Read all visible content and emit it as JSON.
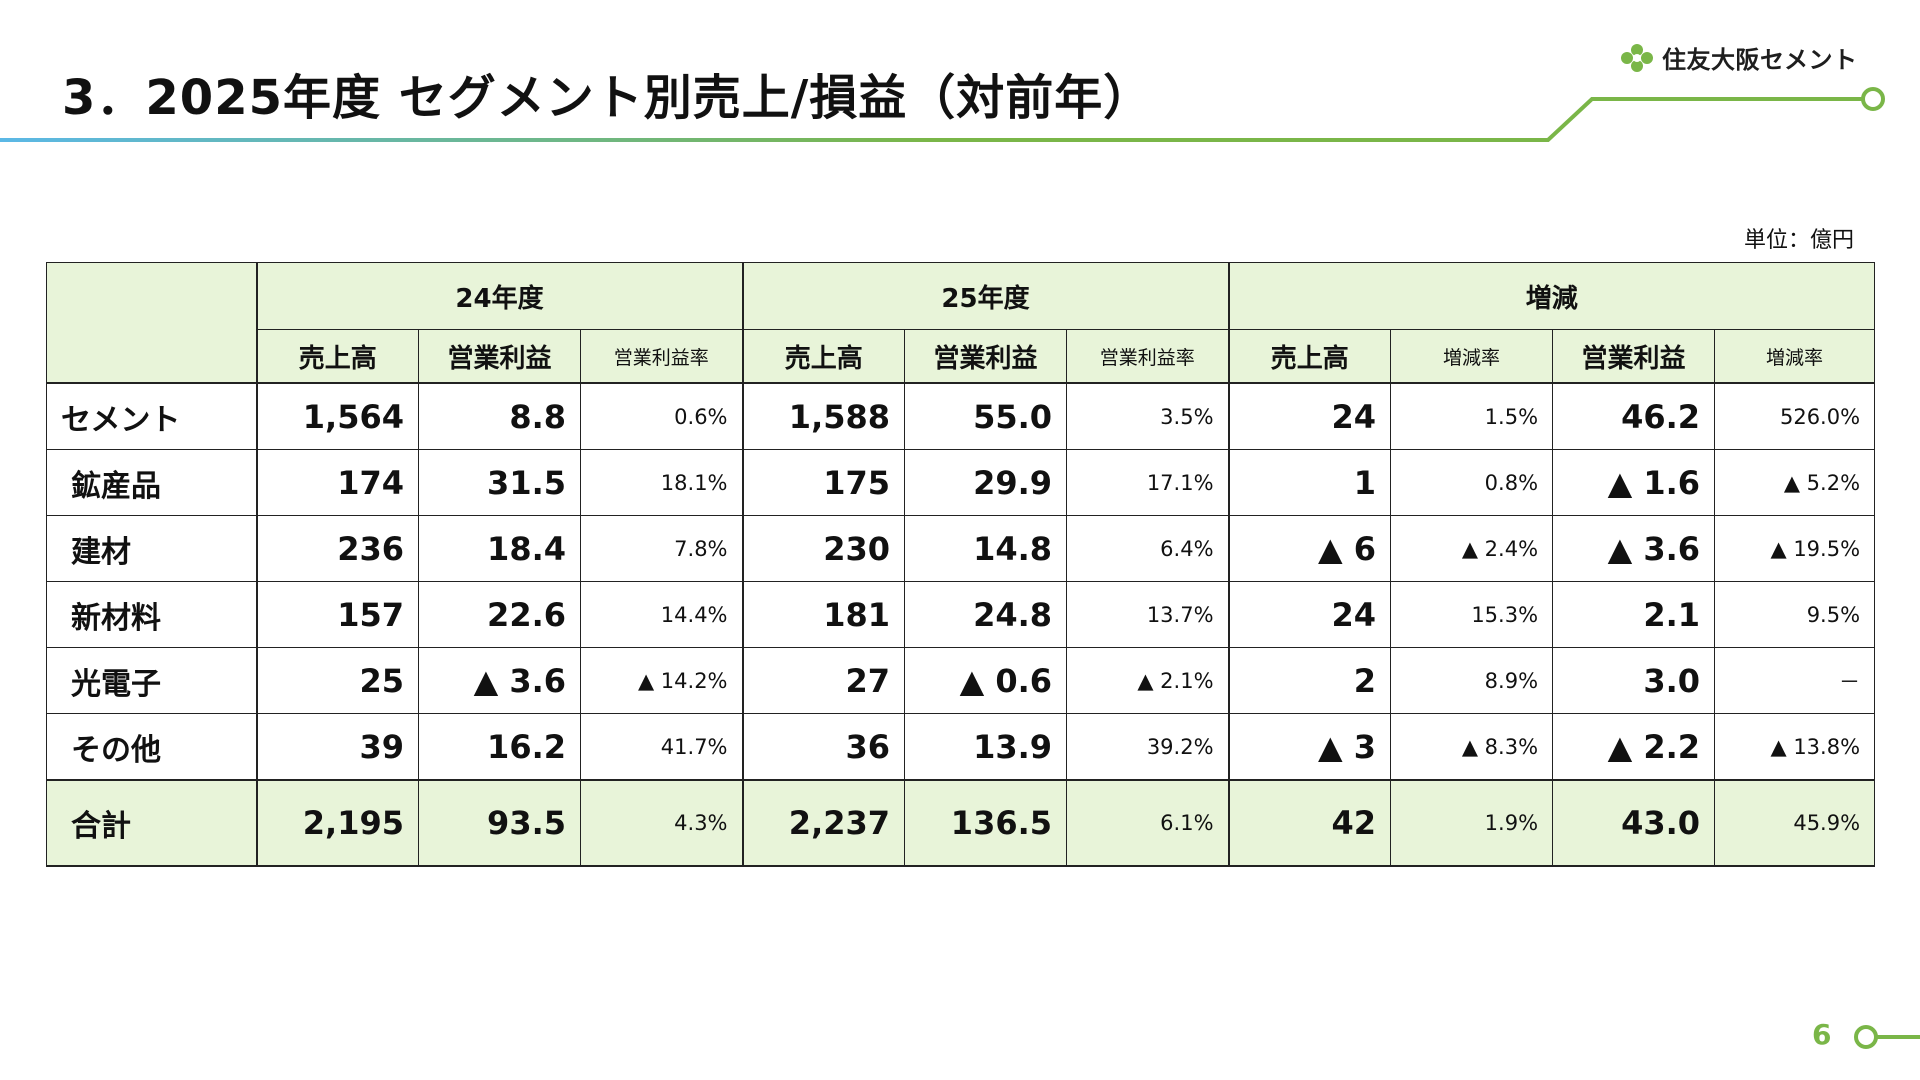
{
  "header": {
    "title": "3．2025年度 セグメント別売上/損益（対前年）",
    "logo_text": "住友大阪セメント"
  },
  "colors": {
    "accent_green": "#7ab648",
    "accent_blue": "#5bb8e6",
    "header_fill": "#e8f4d9"
  },
  "unit_label": "単位：億円",
  "table": {
    "top_headers": [
      "24年度",
      "25年度",
      "増減"
    ],
    "sub_headers": [
      "売上高",
      "営業利益",
      "営業利益率",
      "売上高",
      "営業利益",
      "営業利益率",
      "売上高",
      "増減率",
      "営業利益",
      "増減率"
    ],
    "rows": [
      {
        "name": "セメント",
        "cells": [
          "1,564",
          "8.8",
          "0.6%",
          "1,588",
          "55.0",
          "3.5%",
          "24",
          "1.5%",
          "46.2",
          "526.0%"
        ]
      },
      {
        "name": "鉱産品",
        "cells": [
          "174",
          "31.5",
          "18.1%",
          "175",
          "29.9",
          "17.1%",
          "1",
          "0.8%",
          "▲ 1.6",
          "▲ 5.2%"
        ]
      },
      {
        "name": "建材",
        "cells": [
          "236",
          "18.4",
          "7.8%",
          "230",
          "14.8",
          "6.4%",
          "▲ 6",
          "▲ 2.4%",
          "▲ 3.6",
          "▲ 19.5%"
        ]
      },
      {
        "name": "新材料",
        "cells": [
          "157",
          "22.6",
          "14.4%",
          "181",
          "24.8",
          "13.7%",
          "24",
          "15.3%",
          "2.1",
          "9.5%"
        ]
      },
      {
        "name": "光電子",
        "cells": [
          "25",
          "▲ 3.6",
          "▲ 14.2%",
          "27",
          "▲ 0.6",
          "▲ 2.1%",
          "2",
          "8.9%",
          "3.0",
          "－"
        ]
      },
      {
        "name": "その他",
        "cells": [
          "39",
          "16.2",
          "41.7%",
          "36",
          "13.9",
          "39.2%",
          "▲ 3",
          "▲ 8.3%",
          "▲ 2.2",
          "▲ 13.8%"
        ]
      }
    ],
    "total": {
      "name": "合計",
      "cells": [
        "2,195",
        "93.5",
        "4.3%",
        "2,237",
        "136.5",
        "6.1%",
        "42",
        "1.9%",
        "43.0",
        "45.9%"
      ]
    }
  },
  "page_number": "6"
}
